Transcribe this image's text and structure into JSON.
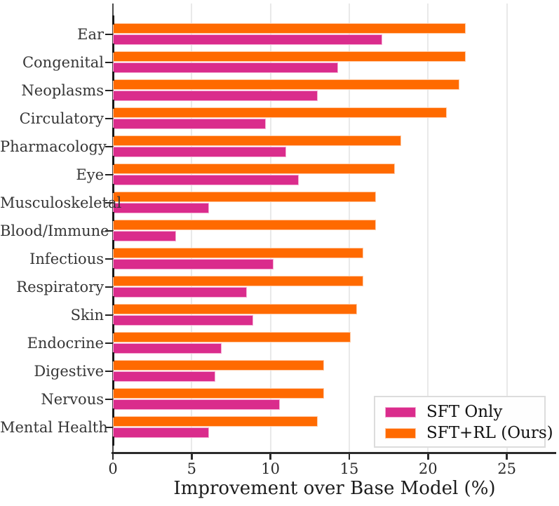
{
  "chart_data": {
    "type": "bar",
    "orientation": "horizontal",
    "xlabel": "Improvement over Base Model (%)",
    "ylabel": "",
    "xlim": [
      0,
      28
    ],
    "xticks": [
      0,
      5,
      10,
      15,
      20,
      25
    ],
    "xtick_labels": [
      "0",
      "5",
      "10",
      "15",
      "20",
      "25"
    ],
    "grid": "vertical-light-gray",
    "legend_position": "lower-right",
    "categories": [
      "Ear",
      "Congenital",
      "Neoplasms",
      "Circulatory",
      "Pharmacology",
      "Eye",
      "Musculoskeletal",
      "Blood/Immune",
      "Infectious",
      "Respiratory",
      "Skin",
      "Endocrine",
      "Digestive",
      "Nervous",
      "Mental Health"
    ],
    "series": [
      {
        "name": "SFT Only",
        "color": "#DA2C8C",
        "edge_color": "#F4ABD3",
        "values": [
          17.1,
          14.3,
          13.0,
          9.7,
          11.0,
          11.8,
          6.1,
          4.0,
          10.2,
          8.5,
          8.9,
          6.9,
          6.5,
          10.6,
          6.1
        ]
      },
      {
        "name": "SFT+RL (Ours)",
        "color": "#FF6A00",
        "edge_color": "#FFC9A3",
        "values": [
          22.4,
          22.4,
          22.0,
          21.2,
          18.3,
          17.9,
          16.7,
          16.7,
          15.9,
          15.9,
          15.5,
          15.1,
          13.4,
          13.4,
          13.0
        ]
      }
    ]
  },
  "colors": {
    "grid": "#e9e9e9",
    "axis": "#2b2b2b",
    "text": "#363636",
    "background": "#ffffff"
  }
}
